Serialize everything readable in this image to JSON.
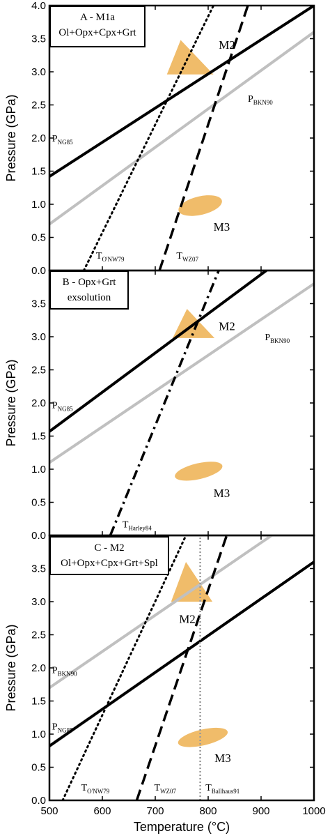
{
  "chart_data": {
    "type": "line",
    "layout": "three vertically stacked panels sharing the x axis",
    "xlabel": "Temperature (°C)",
    "xlim": [
      500,
      1000
    ],
    "xticks": [
      "500",
      "600",
      "700",
      "800",
      "900",
      "1000"
    ],
    "panels": [
      {
        "key": "A",
        "title_lines": [
          "A - M1a",
          "Ol+Opx+Cpx+Grt"
        ],
        "ylabel": "Pressure (GPa)",
        "ylim": [
          0,
          4.0
        ],
        "yticks": [
          "0.0",
          "0.5",
          "1.0",
          "1.5",
          "2.0",
          "2.5",
          "3.0",
          "3.5",
          "4.0"
        ],
        "lines": [
          {
            "name": "P_NG85",
            "style": "solid-black",
            "points": [
              [
                500,
                1.42
              ],
              [
                1000,
                4.0
              ]
            ]
          },
          {
            "name": "P_BKN90",
            "style": "solid-gray",
            "points": [
              [
                500,
                0.7
              ],
              [
                1000,
                3.6
              ]
            ]
          },
          {
            "name": "T_O'NW79",
            "style": "dotted-black",
            "points": [
              [
                565,
                0.0
              ],
              [
                810,
                4.0
              ]
            ]
          },
          {
            "name": "T_WZ07",
            "style": "dashed-black",
            "points": [
              [
                708,
                0.0
              ],
              [
                875,
                4.0
              ]
            ]
          }
        ],
        "regions": [
          {
            "label": "M2",
            "shape": "triangle",
            "points": [
              [
                748,
                3.48
              ],
              [
                722,
                2.96
              ],
              [
                810,
                2.96
              ]
            ],
            "label_at": [
              820,
              3.35
            ]
          },
          {
            "label": "M3",
            "shape": "ellipse",
            "center": [
              785,
              0.98
            ],
            "rx": 42,
            "ry": 0.14,
            "rotate_deg": -13,
            "label_at": [
              810,
              0.6
            ]
          }
        ],
        "annotations": [
          {
            "main": "P",
            "sub": "NG85",
            "at": [
              505,
              1.95
            ]
          },
          {
            "main": "P",
            "sub": "BKN90",
            "at": [
              875,
              2.55
            ]
          },
          {
            "main": "T",
            "sub": "O'NW79",
            "at": [
              588,
              0.18
            ]
          },
          {
            "main": "T",
            "sub": "WZ07",
            "at": [
              740,
              0.18
            ]
          }
        ]
      },
      {
        "key": "B",
        "title_lines": [
          "B - Opx+Grt",
          "exsolution"
        ],
        "ylabel": "Pressure (GPa)",
        "ylim": [
          0,
          4.0
        ],
        "yticks": [
          "0.0",
          "0.5",
          "1.0",
          "1.5",
          "2.0",
          "2.5",
          "3.0",
          "3.5"
        ],
        "lines": [
          {
            "name": "P_NG85",
            "style": "solid-black",
            "points": [
              [
                500,
                1.57
              ],
              [
                910,
                4.0
              ]
            ]
          },
          {
            "name": "P_BKN90",
            "style": "solid-gray",
            "points": [
              [
                500,
                1.1
              ],
              [
                1000,
                3.8
              ]
            ]
          },
          {
            "name": "T_Harley84",
            "style": "dashdot-black",
            "points": [
              [
                615,
                0.0
              ],
              [
                820,
                4.0
              ]
            ]
          }
        ],
        "regions": [
          {
            "label": "M2",
            "shape": "triangle",
            "points": [
              [
                760,
                3.42
              ],
              [
                733,
                2.98
              ],
              [
                812,
                2.98
              ]
            ],
            "label_at": [
              820,
              3.1
            ]
          },
          {
            "label": "M3",
            "shape": "ellipse",
            "center": [
              782,
              0.97
            ],
            "rx": 46,
            "ry": 0.12,
            "rotate_deg": -13,
            "label_at": [
              810,
              0.58
            ]
          }
        ],
        "annotations": [
          {
            "main": "P",
            "sub": "NG85",
            "at": [
              505,
              1.92
            ]
          },
          {
            "main": "P",
            "sub": "BKN90",
            "at": [
              907,
              2.95
            ]
          },
          {
            "main": "T",
            "sub": "Harley84",
            "at": [
              638,
              0.12
            ]
          }
        ]
      },
      {
        "key": "C",
        "title_lines": [
          "C - M2",
          "Ol+Opx+Cpx+Grt+Spl"
        ],
        "ylabel": "Pressure (GPa)",
        "xlabel": "Temperature (°C)",
        "ylim": [
          0,
          4.0
        ],
        "yticks": [
          "0.0",
          "0.5",
          "1.0",
          "1.5",
          "2.0",
          "2.5",
          "3.0",
          "3.5"
        ],
        "lines": [
          {
            "name": "P_BKN90",
            "style": "solid-gray",
            "points": [
              [
                500,
                1.7
              ],
              [
                920,
                4.0
              ]
            ]
          },
          {
            "name": "P_NG85",
            "style": "solid-black",
            "points": [
              [
                500,
                0.82
              ],
              [
                1000,
                3.6
              ]
            ]
          },
          {
            "name": "T_O'NW79",
            "style": "dotted-black",
            "points": [
              [
                525,
                0.0
              ],
              [
                758,
                4.0
              ]
            ]
          },
          {
            "name": "T_WZ07",
            "style": "dashed-black",
            "points": [
              [
                665,
                0.0
              ],
              [
                835,
                4.0
              ]
            ]
          },
          {
            "name": "T_Ballhaus91",
            "style": "dotted-gray",
            "points": [
              [
                785,
                0.0
              ],
              [
                785,
                4.0
              ]
            ]
          }
        ],
        "regions": [
          {
            "label": "M2",
            "shape": "triangle",
            "points": [
              [
                758,
                3.6
              ],
              [
                730,
                3.0
              ],
              [
                808,
                3.0
              ]
            ],
            "label_at": [
              745,
              2.68
            ]
          },
          {
            "label": "M3",
            "shape": "ellipse",
            "center": [
              790,
              0.95
            ],
            "rx": 48,
            "ry": 0.12,
            "rotate_deg": -13,
            "label_at": [
              812,
              0.58
            ]
          }
        ],
        "annotations": [
          {
            "main": "P",
            "sub": "BKN90",
            "at": [
              505,
              1.92
            ]
          },
          {
            "main": "P",
            "sub": "NG85",
            "at": [
              505,
              1.07
            ]
          },
          {
            "main": "T",
            "sub": "O'NW79",
            "at": [
              560,
              0.15
            ]
          },
          {
            "main": "T",
            "sub": "WZ07",
            "at": [
              698,
              0.15
            ]
          },
          {
            "main": "T",
            "sub": "Ballhaus91",
            "at": [
              795,
              0.15
            ]
          }
        ]
      }
    ]
  },
  "colors": {
    "black_line": "#000000",
    "gray_line": "#c0c0c0",
    "ballhaus_line": "#9a9a9a",
    "region_fill": "#f0bc6a",
    "axis": "#000000",
    "background": "#ffffff"
  }
}
